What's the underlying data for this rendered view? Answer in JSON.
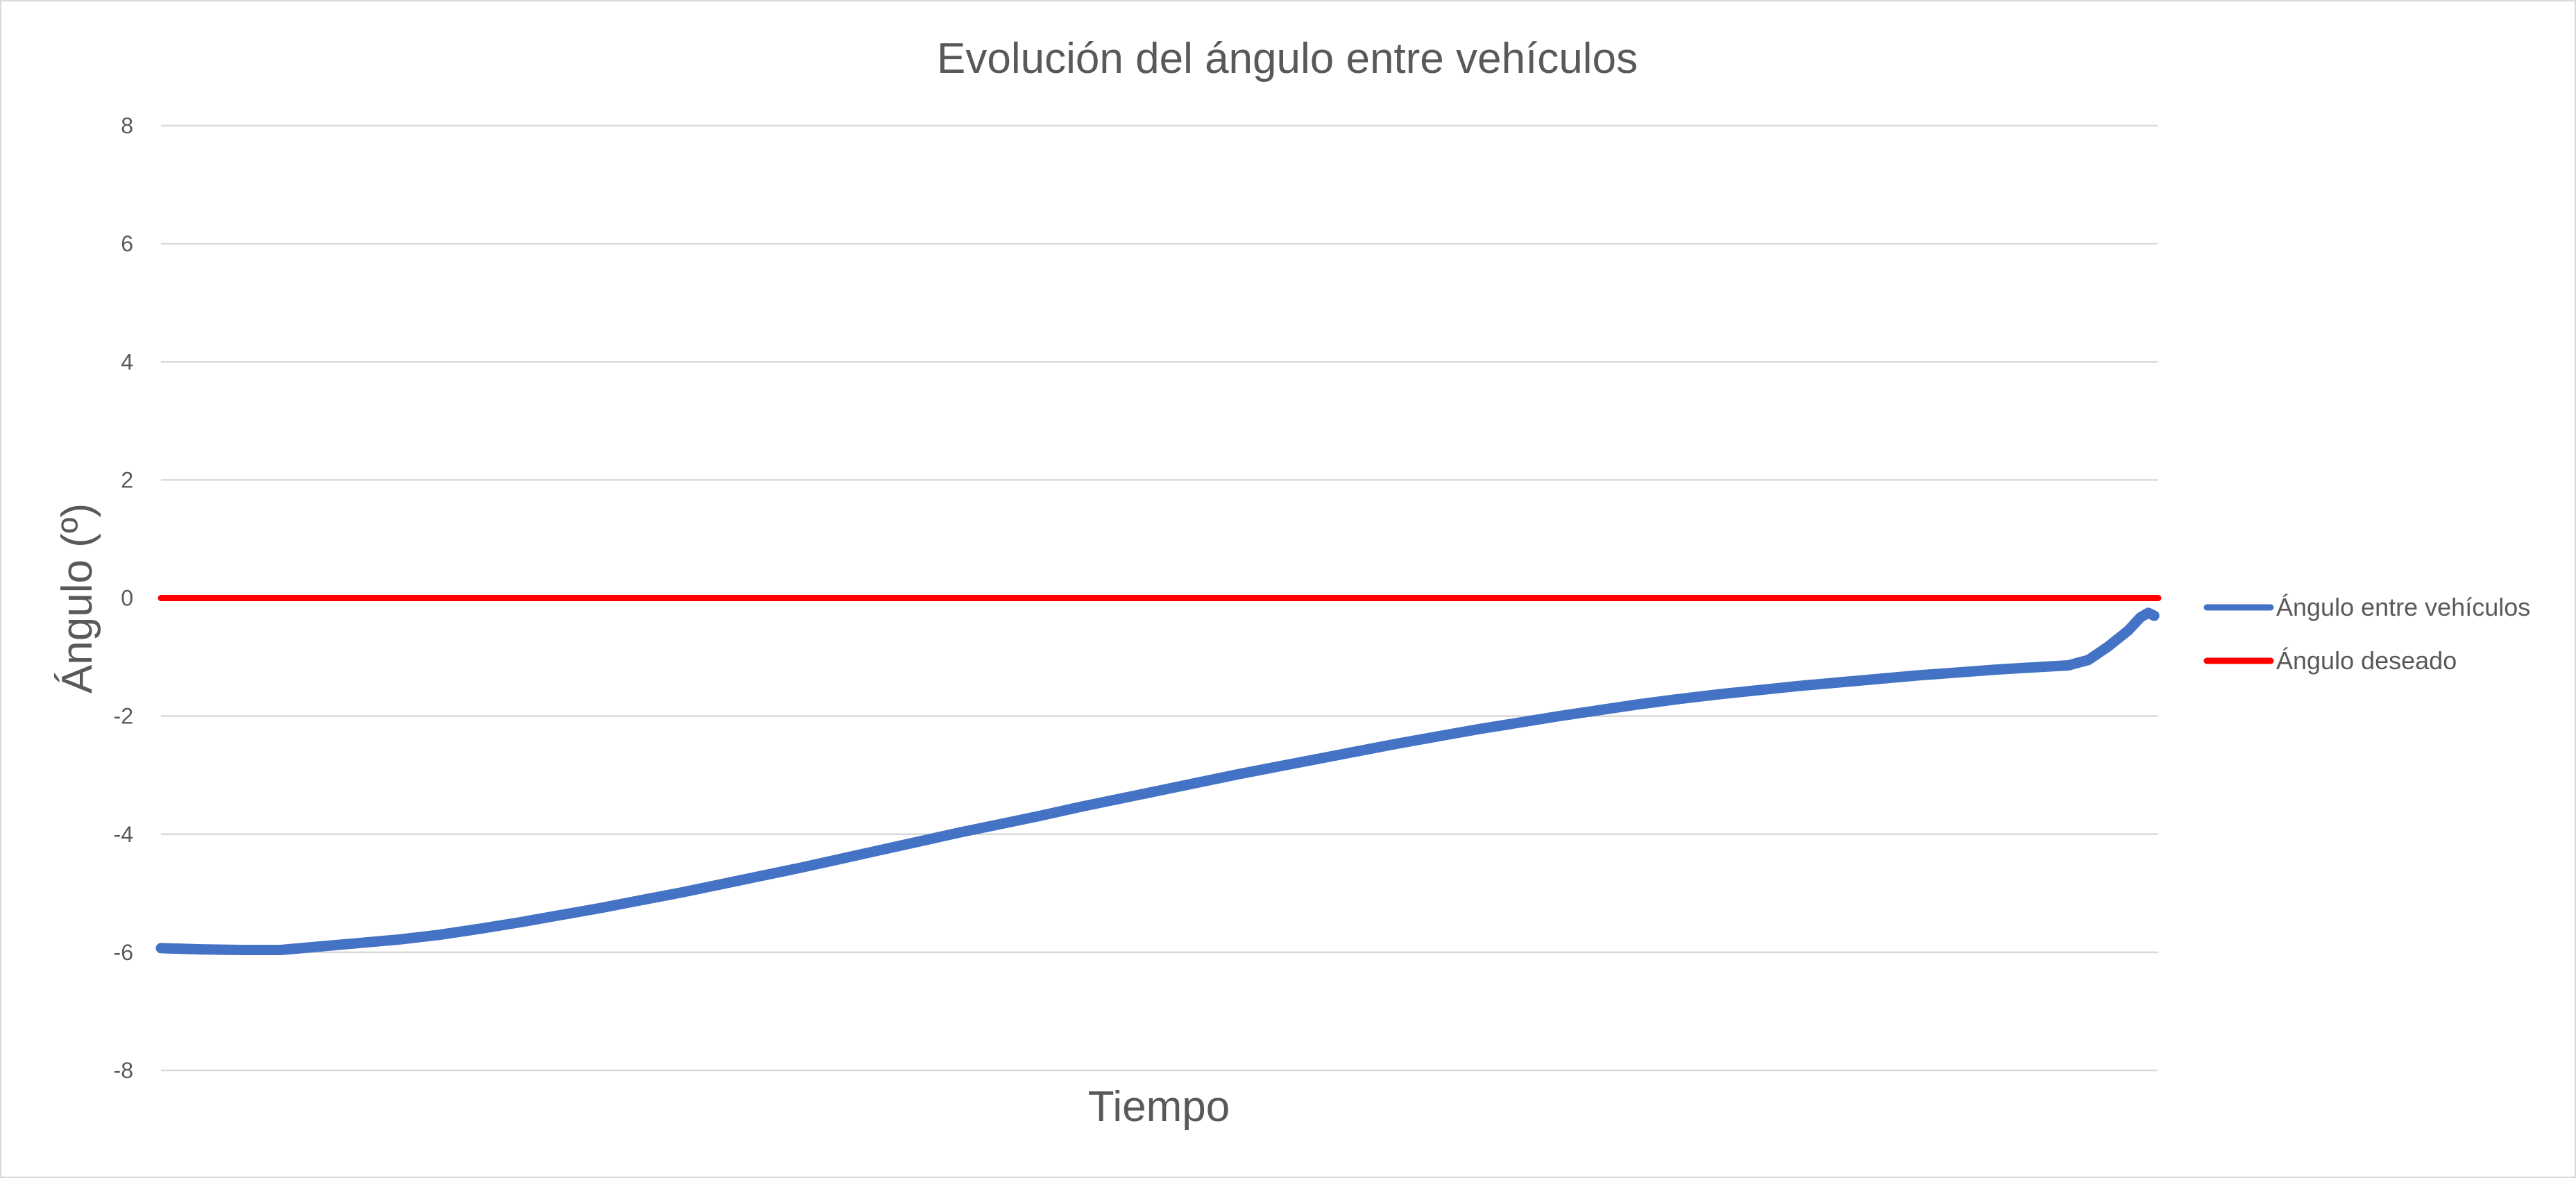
{
  "chart_data": {
    "type": "line",
    "title": "Evolución del ángulo entre vehículos",
    "xlabel": "Tiempo",
    "ylabel": "Ángulo (º)",
    "ylim": [
      -8,
      8
    ],
    "yticks": [
      -8,
      -6,
      -4,
      -2,
      0,
      2,
      4,
      6,
      8
    ],
    "grid": true,
    "legend_position": "right",
    "x_range": [
      0,
      100
    ],
    "series": [
      {
        "name": "Ángulo entre vehículos",
        "color": "#4472C4",
        "x": [
          0,
          2,
          4,
          6,
          8,
          10,
          12,
          14,
          16,
          18,
          20,
          22,
          24,
          26,
          28,
          30,
          32,
          34,
          36,
          38,
          40,
          42,
          44,
          46,
          48,
          50,
          52,
          54,
          56,
          58,
          60,
          62,
          64,
          66,
          68,
          70,
          72,
          74,
          76,
          78,
          80,
          82,
          84,
          86,
          88,
          90,
          92,
          94,
          95.5,
          96.5,
          97.5,
          98.5,
          99.1,
          99.5,
          99.8
        ],
        "values": [
          -5.93,
          -5.95,
          -5.96,
          -5.96,
          -5.9,
          -5.84,
          -5.78,
          -5.7,
          -5.6,
          -5.49,
          -5.37,
          -5.25,
          -5.12,
          -4.99,
          -4.85,
          -4.71,
          -4.57,
          -4.42,
          -4.27,
          -4.12,
          -3.97,
          -3.83,
          -3.69,
          -3.54,
          -3.4,
          -3.26,
          -3.12,
          -2.98,
          -2.85,
          -2.72,
          -2.59,
          -2.46,
          -2.34,
          -2.22,
          -2.11,
          -2.0,
          -1.9,
          -1.8,
          -1.71,
          -1.63,
          -1.56,
          -1.49,
          -1.43,
          -1.37,
          -1.31,
          -1.26,
          -1.21,
          -1.17,
          -1.14,
          -1.05,
          -0.82,
          -0.55,
          -0.33,
          -0.25,
          -0.3
        ]
      },
      {
        "name": "Ángulo deseado",
        "color": "#FF0000",
        "x": [
          0,
          100
        ],
        "values": [
          0,
          0
        ]
      }
    ]
  }
}
